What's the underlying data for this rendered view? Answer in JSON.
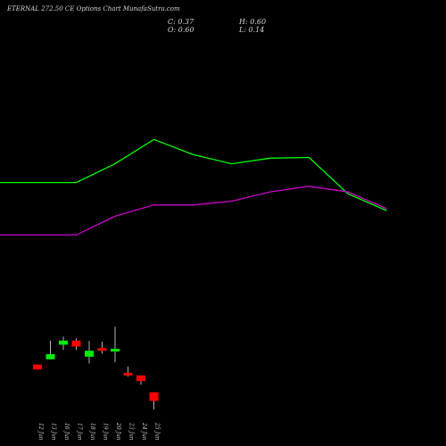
{
  "header": {
    "title": "ETERNAL 272.50 CE Options Chart MunafaSutra.com",
    "close_text": "C: 0.37",
    "open_text": "O: 0.60",
    "high_text": "H: 0.60",
    "low_text": "L: 0.14"
  },
  "colors": {
    "background": "#000000",
    "up": "#00ee00",
    "down": "#ff0000",
    "ma_fast": "#00ff00",
    "ma_slow": "#cc00cc",
    "wick": "#e0e0e0"
  },
  "chart_data": {
    "type": "candlestick",
    "title": "ETERNAL 272.50 CE Options Chart MunafaSutra.com",
    "categories": [
      "12 Jun",
      "13 Jun",
      "16 Jun",
      "17 Jun",
      "18 Jun",
      "19 Jun",
      "20 Jun",
      "23 Jun",
      "24 Jun",
      "25 Jun"
    ],
    "candles": [
      {
        "date": "12 Jun",
        "open": 1.34,
        "high": 1.34,
        "low": 1.21,
        "close": 1.21
      },
      {
        "date": "13 Jun",
        "open": 1.48,
        "high": 1.98,
        "low": 1.48,
        "close": 1.62
      },
      {
        "date": "16 Jun",
        "open": 1.87,
        "high": 2.09,
        "low": 1.73,
        "close": 1.98
      },
      {
        "date": "17 Jun",
        "open": 1.98,
        "high": 2.04,
        "low": 1.73,
        "close": 1.82
      },
      {
        "date": "18 Jun",
        "open": 1.55,
        "high": 1.97,
        "low": 1.37,
        "close": 1.71
      },
      {
        "date": "19 Jun",
        "open": 1.78,
        "high": 1.95,
        "low": 1.63,
        "close": 1.76
      },
      {
        "date": "20 Jun",
        "open": 1.72,
        "high": 2.35,
        "low": 1.4,
        "close": 1.76
      },
      {
        "date": "23 Jun",
        "open": 1.12,
        "high": 1.29,
        "low": 1.02,
        "close": 1.09
      },
      {
        "date": "24 Jun",
        "open": 1.05,
        "high": 1.05,
        "low": 0.8,
        "close": 0.9
      },
      {
        "date": "25 Jun",
        "open": 0.6,
        "high": 0.6,
        "low": 0.14,
        "close": 0.37
      }
    ],
    "moving_averages": [
      {
        "color": "#00ff00",
        "values": [
          6.2,
          6.2,
          6.2,
          6.7,
          7.35,
          6.95,
          6.7,
          6.85,
          6.87,
          5.9,
          5.45
        ]
      },
      {
        "color": "#cc00cc",
        "values": [
          4.8,
          4.8,
          4.8,
          5.3,
          5.6,
          5.6,
          5.7,
          5.95,
          6.1,
          5.95,
          5.5
        ]
      }
    ],
    "ma_x_index": [
      -3,
      0,
      3,
      6,
      9,
      12,
      15,
      18,
      21,
      24,
      27
    ],
    "ylim": [
      0,
      10
    ],
    "xlabel": "",
    "ylabel": "",
    "grid": false,
    "legend": "none"
  }
}
